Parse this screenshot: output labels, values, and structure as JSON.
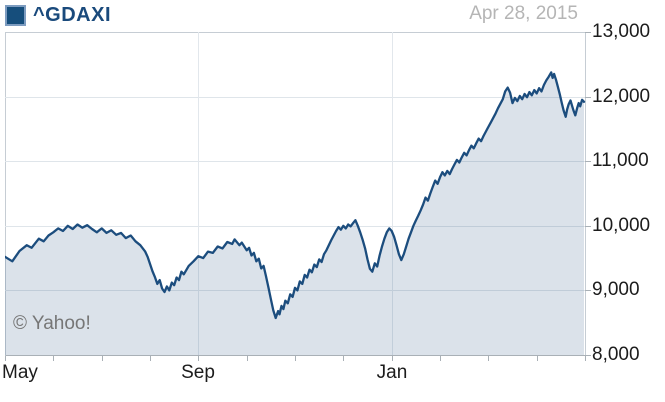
{
  "header": {
    "symbol": "^GDAXI",
    "date": "Apr 28, 2015"
  },
  "watermark": "© Yahoo!",
  "colors": {
    "line": "#1c4d7e",
    "fill": "rgba(28,77,126,0.16)",
    "grid": "#dfe5ea",
    "axis_border": "#c6cdd4",
    "axis_bottom": "#a9b0b6",
    "tick": "#a9b0b6",
    "axis_label_text": "#1c1c1c",
    "date_text": "#b5b5b5",
    "watermark_text": "#767676",
    "symbol_text": "#1a4a7c",
    "swatch_fill": "#164e7c",
    "swatch_border": "#7d9cc0"
  },
  "chart_data": {
    "type": "area",
    "title": "^GDAXI 1-year price chart ending Apr 28, 2015",
    "x_axis": {
      "unit": "months since May 2014",
      "xlim_months": [
        0,
        12
      ],
      "labels": [
        {
          "text": "May",
          "month": 0,
          "align": "left"
        },
        {
          "text": "Sep",
          "month": 4,
          "align": "center"
        },
        {
          "text": "Jan",
          "month": 8,
          "align": "center"
        }
      ],
      "gridline_months": [
        4,
        8
      ],
      "minor_tick_months": [
        0,
        1,
        2,
        3,
        4,
        5,
        6,
        7,
        8,
        9,
        10,
        11,
        12
      ]
    },
    "y_axis": {
      "ylim": [
        8000,
        13000
      ],
      "ticks": [
        13000,
        12000,
        11000,
        10000,
        9000,
        8000
      ],
      "tick_labels": [
        "13,000",
        "12,000",
        "11,000",
        "10,000",
        "9,000",
        "8,000"
      ]
    },
    "grid": true,
    "legend_position": "top-left",
    "points": [
      [
        0,
        9520
      ],
      [
        0.15,
        9450
      ],
      [
        0.3,
        9610
      ],
      [
        0.45,
        9700
      ],
      [
        0.55,
        9660
      ],
      [
        0.7,
        9800
      ],
      [
        0.8,
        9760
      ],
      [
        0.9,
        9850
      ],
      [
        1,
        9900
      ],
      [
        1.1,
        9960
      ],
      [
        1.2,
        9920
      ],
      [
        1.3,
        10000
      ],
      [
        1.4,
        9950
      ],
      [
        1.5,
        10020
      ],
      [
        1.6,
        9970
      ],
      [
        1.7,
        10010
      ],
      [
        1.8,
        9950
      ],
      [
        1.9,
        9900
      ],
      [
        2,
        9960
      ],
      [
        2.1,
        9890
      ],
      [
        2.2,
        9930
      ],
      [
        2.3,
        9860
      ],
      [
        2.4,
        9890
      ],
      [
        2.5,
        9810
      ],
      [
        2.6,
        9850
      ],
      [
        2.7,
        9760
      ],
      [
        2.8,
        9700
      ],
      [
        2.9,
        9600
      ],
      [
        2.95,
        9520
      ],
      [
        3,
        9410
      ],
      [
        3.05,
        9300
      ],
      [
        3.1,
        9210
      ],
      [
        3.15,
        9100
      ],
      [
        3.2,
        9160
      ],
      [
        3.25,
        9030
      ],
      [
        3.3,
        8975
      ],
      [
        3.35,
        9060
      ],
      [
        3.4,
        9000
      ],
      [
        3.45,
        9120
      ],
      [
        3.5,
        9080
      ],
      [
        3.55,
        9200
      ],
      [
        3.6,
        9160
      ],
      [
        3.65,
        9290
      ],
      [
        3.7,
        9250
      ],
      [
        3.8,
        9380
      ],
      [
        3.9,
        9450
      ],
      [
        4,
        9530
      ],
      [
        4.1,
        9500
      ],
      [
        4.2,
        9600
      ],
      [
        4.3,
        9580
      ],
      [
        4.4,
        9680
      ],
      [
        4.5,
        9650
      ],
      [
        4.6,
        9750
      ],
      [
        4.7,
        9720
      ],
      [
        4.75,
        9790
      ],
      [
        4.85,
        9700
      ],
      [
        4.9,
        9740
      ],
      [
        5,
        9620
      ],
      [
        5.05,
        9660
      ],
      [
        5.1,
        9540
      ],
      [
        5.15,
        9580
      ],
      [
        5.2,
        9450
      ],
      [
        5.25,
        9490
      ],
      [
        5.3,
        9340
      ],
      [
        5.35,
        9380
      ],
      [
        5.4,
        9220
      ],
      [
        5.45,
        9050
      ],
      [
        5.5,
        8870
      ],
      [
        5.55,
        8690
      ],
      [
        5.6,
        8572
      ],
      [
        5.65,
        8680
      ],
      [
        5.68,
        8630
      ],
      [
        5.72,
        8760
      ],
      [
        5.76,
        8710
      ],
      [
        5.8,
        8840
      ],
      [
        5.85,
        8800
      ],
      [
        5.9,
        8940
      ],
      [
        5.95,
        8900
      ],
      [
        6,
        9040
      ],
      [
        6.05,
        9000
      ],
      [
        6.1,
        9140
      ],
      [
        6.15,
        9100
      ],
      [
        6.2,
        9240
      ],
      [
        6.25,
        9200
      ],
      [
        6.3,
        9320
      ],
      [
        6.35,
        9280
      ],
      [
        6.4,
        9400
      ],
      [
        6.45,
        9360
      ],
      [
        6.5,
        9480
      ],
      [
        6.55,
        9440
      ],
      [
        6.6,
        9560
      ],
      [
        6.65,
        9620
      ],
      [
        6.7,
        9700
      ],
      [
        6.75,
        9780
      ],
      [
        6.8,
        9850
      ],
      [
        6.85,
        9920
      ],
      [
        6.9,
        9980
      ],
      [
        6.95,
        9940
      ],
      [
        7,
        10000
      ],
      [
        7.05,
        9960
      ],
      [
        7.1,
        10020
      ],
      [
        7.15,
        9990
      ],
      [
        7.2,
        10040
      ],
      [
        7.25,
        10087
      ],
      [
        7.3,
        10000
      ],
      [
        7.35,
        9900
      ],
      [
        7.4,
        9780
      ],
      [
        7.45,
        9650
      ],
      [
        7.5,
        9480
      ],
      [
        7.55,
        9334
      ],
      [
        7.6,
        9290
      ],
      [
        7.65,
        9420
      ],
      [
        7.7,
        9370
      ],
      [
        7.75,
        9540
      ],
      [
        7.8,
        9680
      ],
      [
        7.85,
        9800
      ],
      [
        7.9,
        9900
      ],
      [
        7.95,
        9960
      ],
      [
        8,
        9920
      ],
      [
        8.05,
        9830
      ],
      [
        8.1,
        9700
      ],
      [
        8.15,
        9560
      ],
      [
        8.2,
        9470
      ],
      [
        8.25,
        9560
      ],
      [
        8.3,
        9680
      ],
      [
        8.35,
        9800
      ],
      [
        8.4,
        9900
      ],
      [
        8.45,
        10000
      ],
      [
        8.5,
        10080
      ],
      [
        8.55,
        10160
      ],
      [
        8.6,
        10240
      ],
      [
        8.65,
        10330
      ],
      [
        8.7,
        10436
      ],
      [
        8.75,
        10390
      ],
      [
        8.8,
        10500
      ],
      [
        8.85,
        10600
      ],
      [
        8.9,
        10700
      ],
      [
        8.95,
        10650
      ],
      [
        9,
        10750
      ],
      [
        9.05,
        10830
      ],
      [
        9.1,
        10780
      ],
      [
        9.15,
        10850
      ],
      [
        9.2,
        10800
      ],
      [
        9.25,
        10880
      ],
      [
        9.3,
        10950
      ],
      [
        9.35,
        11020
      ],
      [
        9.4,
        10980
      ],
      [
        9.45,
        11060
      ],
      [
        9.5,
        11130
      ],
      [
        9.55,
        11090
      ],
      [
        9.6,
        11170
      ],
      [
        9.65,
        11240
      ],
      [
        9.7,
        11200
      ],
      [
        9.75,
        11280
      ],
      [
        9.8,
        11350
      ],
      [
        9.85,
        11310
      ],
      [
        9.9,
        11390
      ],
      [
        9.95,
        11460
      ],
      [
        10,
        11530
      ],
      [
        10.05,
        11600
      ],
      [
        10.1,
        11670
      ],
      [
        10.15,
        11740
      ],
      [
        10.2,
        11820
      ],
      [
        10.25,
        11890
      ],
      [
        10.3,
        11960
      ],
      [
        10.35,
        12080
      ],
      [
        10.4,
        12140
      ],
      [
        10.45,
        12060
      ],
      [
        10.5,
        11900
      ],
      [
        10.55,
        11980
      ],
      [
        10.6,
        11930
      ],
      [
        10.65,
        12010
      ],
      [
        10.7,
        11960
      ],
      [
        10.75,
        12040
      ],
      [
        10.8,
        11990
      ],
      [
        10.85,
        12070
      ],
      [
        10.9,
        12020
      ],
      [
        10.95,
        12100
      ],
      [
        11,
        12050
      ],
      [
        11.05,
        12130
      ],
      [
        11.1,
        12080
      ],
      [
        11.15,
        12180
      ],
      [
        11.2,
        12250
      ],
      [
        11.25,
        12310
      ],
      [
        11.3,
        12375
      ],
      [
        11.33,
        12290
      ],
      [
        11.36,
        12350
      ],
      [
        11.4,
        12260
      ],
      [
        11.44,
        12150
      ],
      [
        11.48,
        12030
      ],
      [
        11.52,
        11900
      ],
      [
        11.56,
        11780
      ],
      [
        11.6,
        11688
      ],
      [
        11.63,
        11800
      ],
      [
        11.66,
        11880
      ],
      [
        11.7,
        11940
      ],
      [
        11.73,
        11860
      ],
      [
        11.76,
        11790
      ],
      [
        11.8,
        11710
      ],
      [
        11.84,
        11830
      ],
      [
        11.87,
        11900
      ],
      [
        11.9,
        11850
      ],
      [
        11.94,
        11950
      ],
      [
        11.98,
        11920
      ]
    ]
  }
}
